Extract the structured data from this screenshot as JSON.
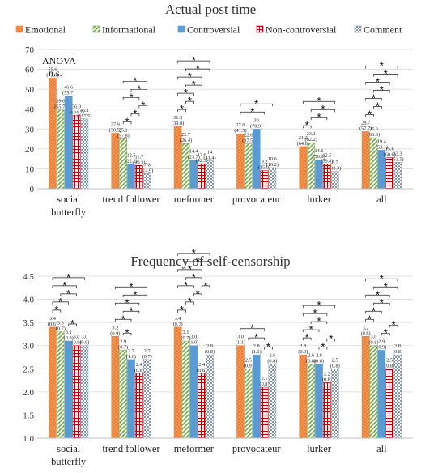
{
  "legend": {
    "items": [
      {
        "name": "Emotional",
        "color": "#ed7d31",
        "pattern": "dots"
      },
      {
        "name": "Informational",
        "color": "#70ad47",
        "pattern": "diagonal"
      },
      {
        "name": "Controversial",
        "color": "#5b9bd5",
        "pattern": "solid"
      },
      {
        "name": "Non-controversial",
        "color": "#c00000",
        "pattern": "grid"
      },
      {
        "name": "Comment",
        "color": "#8497b0",
        "pattern": "checker"
      }
    ]
  },
  "chart_data": [
    {
      "type": "bar",
      "title": "Actual post time",
      "categories": [
        "social butterfly",
        "trend follower",
        "meformer",
        "provocateur",
        "lurker",
        "all"
      ],
      "ylim": [
        0,
        70
      ],
      "yticks": [
        0,
        10,
        20,
        30,
        40,
        50,
        60,
        70
      ],
      "grid": true,
      "legend_position": "top",
      "annotation": {
        "line1": "ANOVA",
        "line2": "n.s."
      },
      "series": [
        {
          "name": "Emotional",
          "values": [
            55.6,
            27.9,
            31.3,
            27.6,
            21.2,
            28.7
          ],
          "sd": [
            "(73.9)",
            "(30.5)",
            "(39.0)",
            "(41.5)",
            "(64.0)",
            "(57.7)"
          ]
        },
        {
          "name": "Informational",
          "values": [
            39.6,
            25.1,
            22.7,
            22.6,
            23.1,
            25.6
          ],
          "sd": [
            "(55.7)",
            "(57.8)",
            "(26.4)",
            "(37.5)",
            "(82.2)",
            "(66.0)"
          ]
        },
        {
          "name": "Controversial",
          "values": [
            46.6,
            12.5,
            14.4,
            30.0,
            14.6,
            19.4
          ],
          "sd": [
            "(55.7)",
            "(22.2)",
            "(23.7)",
            "(70.9)",
            "(56.8)",
            "(53.1)"
          ]
        },
        {
          "name": "Non-controversial",
          "values": [
            36.9,
            11.7,
            12.6,
            9.2,
            12.5,
            15.6
          ],
          "sd": [
            "(104.7)",
            "(19.3)",
            "(42.3)",
            "(15.0)",
            "(59.8)",
            "(60.6)"
          ]
        },
        {
          "name": "Comment",
          "values": [
            35.1,
            7.6,
            14.0,
            10.6,
            8.7,
            13.3
          ],
          "sd": [
            "(117.5)",
            "(14.9)",
            "(41.4)",
            "(16.2)",
            "(33.3)",
            "(53.5)"
          ]
        }
      ],
      "significance": [
        {
          "cat": 1,
          "pairs": [
            [
              1,
              2
            ],
            [
              1,
              3
            ],
            [
              1,
              4
            ],
            [
              2,
              3
            ],
            [
              2,
              4
            ],
            [
              3,
              4
            ]
          ]
        },
        {
          "cat": 2,
          "pairs": [
            [
              0,
              1
            ],
            [
              0,
              2
            ],
            [
              0,
              3
            ],
            [
              0,
              4
            ],
            [
              1,
              2
            ],
            [
              1,
              3
            ],
            [
              1,
              4
            ]
          ]
        },
        {
          "cat": 3,
          "pairs": [
            [
              0,
              3
            ],
            [
              0,
              4
            ]
          ]
        },
        {
          "cat": 4,
          "pairs": [
            [
              0,
              1
            ],
            [
              0,
              4
            ],
            [
              1,
              3
            ],
            [
              1,
              4
            ]
          ]
        },
        {
          "cat": 5,
          "pairs": [
            [
              0,
              1
            ],
            [
              0,
              2
            ],
            [
              0,
              3
            ],
            [
              0,
              4
            ],
            [
              1,
              2
            ],
            [
              1,
              3
            ],
            [
              1,
              4
            ]
          ]
        }
      ]
    },
    {
      "type": "bar",
      "title": "Frequency of self-censorship",
      "categories": [
        "social butterfly",
        "trend follower",
        "meformer",
        "provocateur",
        "lurker",
        "all"
      ],
      "ylim": [
        1.0,
        4.5
      ],
      "yticks": [
        "1.0",
        "1.5",
        "2.0",
        "2.5",
        "3.0",
        "3.5",
        "4.0",
        "4.5"
      ],
      "grid": true,
      "series": [
        {
          "name": "Emotional",
          "values": [
            3.4,
            3.2,
            3.4,
            3.0,
            2.8,
            3.2
          ],
          "sd": [
            "(0.6)",
            "(0.9)",
            "(0.7)",
            "(1.1)",
            "(0.9)",
            "(0.8)"
          ]
        },
        {
          "name": "Informational",
          "values": [
            3.3,
            2.9,
            3.1,
            2.5,
            2.6,
            3.0
          ],
          "sd": [
            "(0.7)",
            "(0.7)",
            "(0.7)",
            "(0.9)",
            "(0.8)",
            "(0.8)"
          ]
        },
        {
          "name": "Controversial",
          "values": [
            3.1,
            2.7,
            3.0,
            2.8,
            2.6,
            2.9
          ],
          "sd": [
            "(0.8)",
            "(1.0)",
            "(1.0)",
            "(1.1)",
            "(0.8)",
            "(0.9)"
          ]
        },
        {
          "name": "Non-controversial",
          "values": [
            3.0,
            2.4,
            2.4,
            2.1,
            2.2,
            2.5
          ],
          "sd": [
            "(0.8)",
            "(0.8)",
            "(0.8)",
            "(0.8)",
            "(0.8)",
            "(0.8)"
          ]
        },
        {
          "name": "Comment",
          "values": [
            3.0,
            2.7,
            2.8,
            2.6,
            2.5,
            2.8
          ],
          "sd": [
            "(0.8)",
            "(0.7)",
            "(0.8)",
            "(0.8)",
            "(0.8)",
            "(0.8)"
          ]
        }
      ],
      "significance": [
        {
          "cat": 0,
          "pairs": [
            [
              0,
              1
            ],
            [
              0,
              2
            ],
            [
              0,
              3
            ],
            [
              0,
              4
            ],
            [
              1,
              3
            ],
            [
              2,
              3
            ]
          ]
        },
        {
          "cat": 1,
          "pairs": [
            [
              0,
              2
            ],
            [
              0,
              3
            ],
            [
              0,
              4
            ],
            [
              1,
              2
            ],
            [
              1,
              3
            ],
            [
              1,
              4
            ]
          ]
        },
        {
          "cat": 2,
          "pairs": [
            [
              0,
              1
            ],
            [
              0,
              2
            ],
            [
              0,
              3
            ],
            [
              0,
              4
            ],
            [
              1,
              2
            ],
            [
              1,
              3
            ],
            [
              1,
              4
            ],
            [
              2,
              3
            ],
            [
              3,
              4
            ]
          ]
        },
        {
          "cat": 3,
          "pairs": [
            [
              0,
              3
            ],
            [
              1,
              3
            ],
            [
              3,
              4
            ]
          ]
        },
        {
          "cat": 4,
          "pairs": [
            [
              0,
              1
            ],
            [
              0,
              2
            ],
            [
              0,
              3
            ],
            [
              0,
              4
            ],
            [
              1,
              3
            ],
            [
              2,
              3
            ],
            [
              3,
              4
            ]
          ]
        },
        {
          "cat": 5,
          "pairs": [
            [
              0,
              1
            ],
            [
              0,
              2
            ],
            [
              0,
              3
            ],
            [
              0,
              4
            ],
            [
              1,
              3
            ],
            [
              1,
              4
            ],
            [
              2,
              3
            ],
            [
              3,
              4
            ]
          ]
        }
      ]
    }
  ]
}
